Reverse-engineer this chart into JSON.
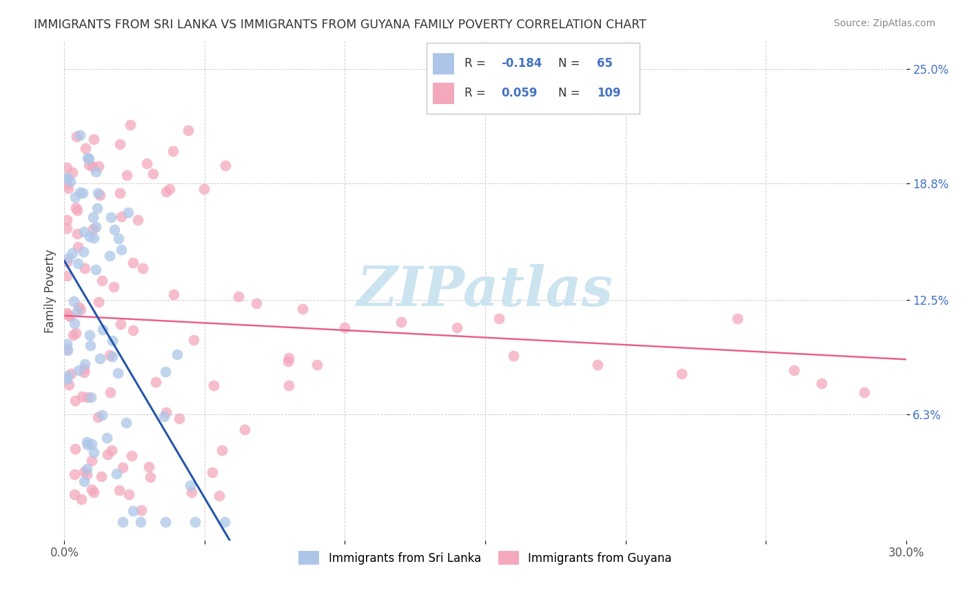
{
  "title": "IMMIGRANTS FROM SRI LANKA VS IMMIGRANTS FROM GUYANA FAMILY POVERTY CORRELATION CHART",
  "source": "Source: ZipAtlas.com",
  "ylabel": "Family Poverty",
  "xlim": [
    0.0,
    0.3
  ],
  "ylim": [
    -0.005,
    0.265
  ],
  "sri_lanka_R": "-0.184",
  "sri_lanka_N": "65",
  "guyana_R": "0.059",
  "guyana_N": "109",
  "sri_lanka_color": "#adc6e8",
  "guyana_color": "#f4a8bc",
  "sri_lanka_line_color": "#2255aa",
  "guyana_line_color": "#e8608a",
  "watermark_color": "#cce4f0",
  "legend_box_color": "#4472c4",
  "background_color": "#ffffff",
  "grid_color": "#cccccc",
  "ytick_color": "#4472c4",
  "title_color": "#333333",
  "source_color": "#888888",
  "axis_label_color": "#444444",
  "xtick_color": "#555555"
}
